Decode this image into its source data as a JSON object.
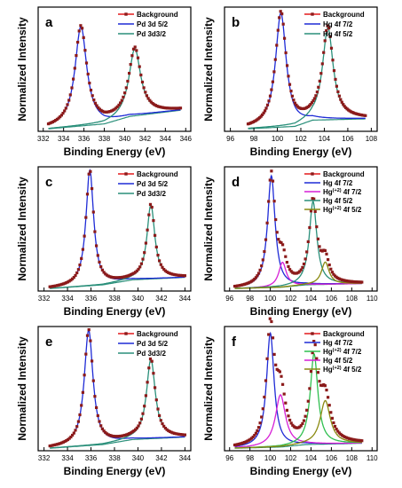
{
  "chart_data": [
    {
      "panel": "a",
      "type": "line",
      "xlabel": "Binding Energy (eV)",
      "ylabel": "Normalized Intensity",
      "xlim": [
        331.5,
        346.5
      ],
      "xticks": [
        332,
        334,
        336,
        338,
        340,
        342,
        344,
        346
      ],
      "legend_position": "top-right",
      "legend": [
        {
          "text": "Background",
          "sup": "",
          "suffix": "",
          "color": "#e41a1c",
          "marker": true
        },
        {
          "text": "Pd 3d 5/2",
          "sup": "",
          "suffix": "",
          "color": "#1f2bd6",
          "marker": false
        },
        {
          "text": "Pd 3d3/2",
          "sup": "",
          "suffix": "",
          "color": "#2a8f7a",
          "marker": false
        }
      ],
      "background": {
        "x": [
          332.5,
          338,
          340.5,
          345.5
        ],
        "y": [
          0.02,
          0.06,
          0.12,
          0.17
        ]
      },
      "peaks": [
        {
          "center": 335.7,
          "height": 0.8,
          "width": 0.7,
          "color": "#1f2bd6",
          "offset": 0.03
        },
        {
          "center": 341.0,
          "height": 0.54,
          "width": 0.7,
          "color": "#2a8f7a",
          "offset": 0.1
        }
      ],
      "envelope": {
        "color": "#8b1a1a",
        "x_range": [
          332.5,
          345.5
        ]
      }
    },
    {
      "panel": "b",
      "type": "line",
      "xlabel": "Binding Energy (eV)",
      "ylabel": "Normalized Intensity",
      "xlim": [
        95.5,
        108.5
      ],
      "xticks": [
        96,
        98,
        100,
        102,
        104,
        106,
        108
      ],
      "legend_position": "top-right",
      "legend": [
        {
          "text": "Background",
          "sup": "",
          "suffix": "",
          "color": "#e41a1c",
          "marker": true
        },
        {
          "text": "Hg 4f 7/2",
          "sup": "",
          "suffix": "",
          "color": "#1f2bd6",
          "marker": false
        },
        {
          "text": "Hg 4f 5/2",
          "sup": "",
          "suffix": "",
          "color": "#2a8f7a",
          "marker": false
        }
      ],
      "background": {
        "x": [
          97.5,
          101.5,
          103,
          107.5
        ],
        "y": [
          0.02,
          0.04,
          0.09,
          0.1
        ]
      },
      "peaks": [
        {
          "center": 100.3,
          "height": 0.92,
          "width": 0.55,
          "color": "#1f2bd6",
          "offset": 0.02
        },
        {
          "center": 104.3,
          "height": 0.74,
          "width": 0.55,
          "color": "#2a8f7a",
          "offset": 0.08
        }
      ],
      "envelope": {
        "color": "#8b1a1a",
        "x_range": [
          97.5,
          107.5
        ]
      }
    },
    {
      "panel": "c",
      "type": "line",
      "xlabel": "Binding Energy (eV)",
      "ylabel": "Normalized Intensity",
      "xlim": [
        331.5,
        344.5
      ],
      "xticks": [
        332,
        334,
        336,
        338,
        340,
        342,
        344
      ],
      "legend_position": "top-right",
      "legend": [
        {
          "text": "Background",
          "sup": "",
          "suffix": "",
          "color": "#e41a1c",
          "marker": true
        },
        {
          "text": "Pd 3d 5/2",
          "sup": "",
          "suffix": "",
          "color": "#1f2bd6",
          "marker": false
        },
        {
          "text": "Pd 3d3/2",
          "sup": "",
          "suffix": "",
          "color": "#2a8f7a",
          "marker": false
        }
      ],
      "background": {
        "x": [
          332.5,
          337,
          339.5,
          344
        ],
        "y": [
          0.02,
          0.05,
          0.09,
          0.11
        ]
      },
      "peaks": [
        {
          "center": 335.9,
          "height": 0.93,
          "width": 0.4,
          "color": "#1f2bd6",
          "offset": 0.03
        },
        {
          "center": 341.1,
          "height": 0.6,
          "width": 0.4,
          "color": "#2a8f7a",
          "offset": 0.1
        }
      ],
      "envelope": {
        "color": "#8b1a1a",
        "x_range": [
          332.5,
          344
        ]
      }
    },
    {
      "panel": "d",
      "type": "line",
      "xlabel": "Binding Energy (eV)",
      "ylabel": "Normalized Intensity",
      "xlim": [
        95.5,
        110.5
      ],
      "xticks": [
        96,
        98,
        100,
        102,
        104,
        106,
        108,
        110
      ],
      "legend_position": "top-right",
      "legend": [
        {
          "text": "Background",
          "sup": "",
          "suffix": "",
          "color": "#e41a1c",
          "marker": true
        },
        {
          "text": "Hg 4f 7/2",
          "sup": "",
          "suffix": "",
          "color": "#1f2bd6",
          "marker": false
        },
        {
          "text": "Hg",
          "sup": "(+2)",
          "suffix": " 4f 7/2",
          "color": "#d61fd6",
          "marker": false
        },
        {
          "text": "Hg 4f 5/2",
          "sup": "",
          "suffix": "",
          "color": "#2a8f7a",
          "marker": false
        },
        {
          "text": "Hg",
          "sup": "(+2)",
          "suffix": " 4f 5/2",
          "color": "#8a8a10",
          "marker": false
        }
      ],
      "background": {
        "x": [
          96.5,
          101,
          103.5,
          109
        ],
        "y": [
          0.02,
          0.03,
          0.05,
          0.06
        ]
      },
      "peaks": [
        {
          "center": 100.1,
          "height": 0.9,
          "width": 0.45,
          "color": "#1f2bd6",
          "offset": 0.02
        },
        {
          "center": 101.2,
          "height": 0.2,
          "width": 0.45,
          "color": "#d61fd6",
          "offset": 0.03
        },
        {
          "center": 104.2,
          "height": 0.67,
          "width": 0.45,
          "color": "#2a8f7a",
          "offset": 0.05
        },
        {
          "center": 105.4,
          "height": 0.18,
          "width": 0.45,
          "color": "#8a8a10",
          "offset": 0.05
        }
      ],
      "envelope": {
        "color": "#8b1a1a",
        "x_range": [
          96.5,
          109
        ]
      }
    },
    {
      "panel": "e",
      "type": "line",
      "xlabel": "Binding Energy (eV)",
      "ylabel": "Normalized Intensity",
      "xlim": [
        331.5,
        344.5
      ],
      "xticks": [
        332,
        334,
        336,
        338,
        340,
        342,
        344
      ],
      "legend_position": "top-right",
      "legend": [
        {
          "text": "Background",
          "sup": "",
          "suffix": "",
          "color": "#e41a1c",
          "marker": true
        },
        {
          "text": "Pd 3d 5/2",
          "sup": "",
          "suffix": "",
          "color": "#1f2bd6",
          "marker": false
        },
        {
          "text": "Pd 3d3/2",
          "sup": "",
          "suffix": "",
          "color": "#2a8f7a",
          "marker": false
        }
      ],
      "background": {
        "x": [
          332.5,
          337,
          339.5,
          344
        ],
        "y": [
          0.02,
          0.05,
          0.09,
          0.11
        ]
      },
      "peaks": [
        {
          "center": 335.8,
          "height": 0.93,
          "width": 0.45,
          "color": "#1f2bd6",
          "offset": 0.03
        },
        {
          "center": 341.1,
          "height": 0.64,
          "width": 0.45,
          "color": "#2a8f7a",
          "offset": 0.1
        }
      ],
      "envelope": {
        "color": "#8b1a1a",
        "x_range": [
          332.5,
          344
        ]
      }
    },
    {
      "panel": "f",
      "type": "line",
      "xlabel": "Binding Energy (eV)",
      "ylabel": "Normalized Intensity",
      "xlim": [
        95.5,
        110.5
      ],
      "xticks": [
        96,
        98,
        100,
        102,
        104,
        106,
        108,
        110
      ],
      "legend_position": "top-right",
      "legend": [
        {
          "text": "Background",
          "sup": "",
          "suffix": "",
          "color": "#e41a1c",
          "marker": true
        },
        {
          "text": "Hg 4f 7/2",
          "sup": "",
          "suffix": "",
          "color": "#1f2bd6",
          "marker": false
        },
        {
          "text": "Hg",
          "sup": "(+2)",
          "suffix": " 4f 7/2",
          "color": "#2fbf4f",
          "marker": false
        },
        {
          "text": "Hg 4f 5/2",
          "sup": "",
          "suffix": "",
          "color": "#d61fd6",
          "marker": false
        },
        {
          "text": "Hg",
          "sup": "(+2)",
          "suffix": " 4f 5/2",
          "color": "#8a8a10",
          "marker": false
        }
      ],
      "background": {
        "x": [
          96.5,
          101,
          103.5,
          109
        ],
        "y": [
          0.02,
          0.03,
          0.05,
          0.06
        ]
      },
      "peaks": [
        {
          "center": 100.0,
          "height": 0.92,
          "width": 0.45,
          "color": "#1f2bd6",
          "offset": 0.02
        },
        {
          "center": 101.0,
          "height": 0.42,
          "width": 0.6,
          "color": "#d61fd6",
          "offset": 0.03
        },
        {
          "center": 104.3,
          "height": 0.73,
          "width": 0.45,
          "color": "#2fbf4f",
          "offset": 0.05
        },
        {
          "center": 105.4,
          "height": 0.35,
          "width": 0.6,
          "color": "#8a8a10",
          "offset": 0.05
        }
      ],
      "envelope": {
        "color": "#8b1a1a",
        "x_range": [
          96.5,
          109
        ]
      }
    }
  ]
}
